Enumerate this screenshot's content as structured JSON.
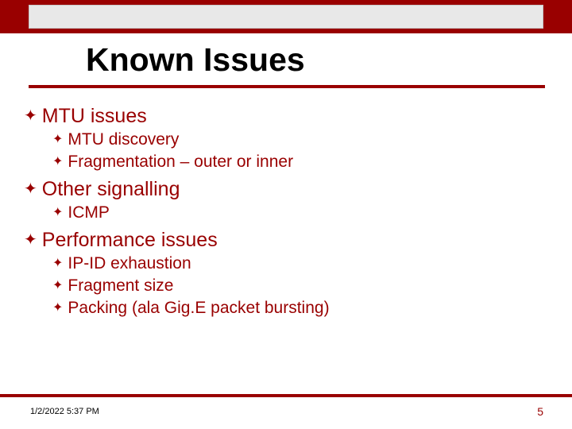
{
  "colors": {
    "brand": "#990000",
    "text": "#990000",
    "title": "#000000",
    "footer_text": "#000000",
    "bg": "#ffffff",
    "topbar_inner": "#e8e8e8"
  },
  "title": "Known Issues",
  "bullets": [
    {
      "text": "MTU issues",
      "children": [
        {
          "text": "MTU discovery"
        },
        {
          "text": "Fragmentation – outer or inner"
        }
      ]
    },
    {
      "text": "Other signalling",
      "children": [
        {
          "text": "ICMP"
        }
      ]
    },
    {
      "text": "Performance issues",
      "children": [
        {
          "text": "IP-ID exhaustion"
        },
        {
          "text": "Fragment size"
        },
        {
          "text": "Packing (ala Gig.E packet bursting)"
        }
      ]
    }
  ],
  "footer": {
    "date": "1/2/2022 5:37 PM",
    "page": "5"
  },
  "bullet_glyph": "✦",
  "typography": {
    "title_fontsize": 41,
    "lvl1_fontsize": 25,
    "lvl2_fontsize": 21,
    "footer_date_fontsize": 11,
    "footer_page_fontsize": 14
  }
}
